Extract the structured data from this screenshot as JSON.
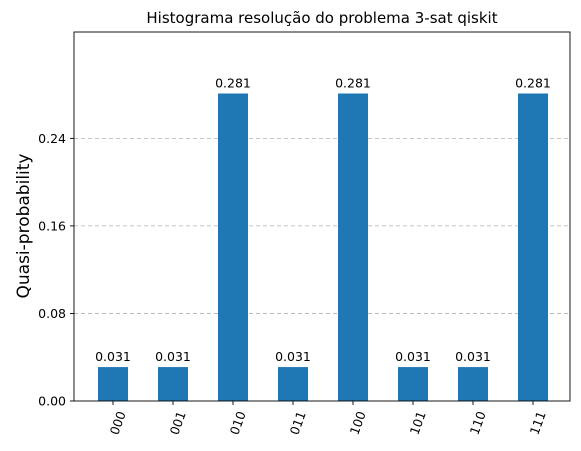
{
  "chart_data": {
    "type": "bar",
    "title": "Histograma resolução do problema 3-sat qiskit",
    "xlabel": "",
    "ylabel": "Quasi-probability",
    "categories": [
      "000",
      "001",
      "010",
      "011",
      "100",
      "101",
      "110",
      "111"
    ],
    "values": [
      0.031,
      0.031,
      0.281,
      0.031,
      0.281,
      0.031,
      0.031,
      0.281
    ],
    "data_labels": [
      "0.031",
      "0.031",
      "0.281",
      "0.031",
      "0.281",
      "0.031",
      "0.031",
      "0.281"
    ],
    "yticks": [
      0.0,
      0.08,
      0.16,
      0.24
    ],
    "ytick_labels": [
      "0.00",
      "0.08",
      "0.16",
      "0.24"
    ],
    "ylim": [
      0,
      0.3372
    ],
    "grid": "horizontal-dashed",
    "bar_color": "#1f77b4",
    "x_tick_rotation": -70
  }
}
